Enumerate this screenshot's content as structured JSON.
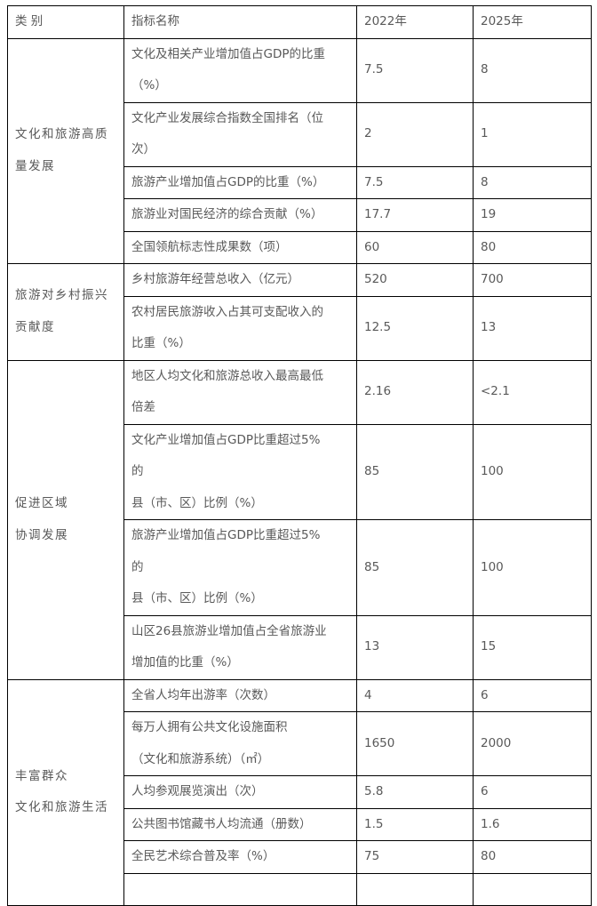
{
  "header": {
    "category": "类 别",
    "indicator": "指标名称",
    "y2022": "2022年",
    "y2025": "2025年"
  },
  "groups": [
    {
      "category": "文化和旅游高质\n量发展",
      "rows": [
        {
          "name": "文化及相关产业增加值占GDP的比重\n（%）",
          "v2022": "7.5",
          "v2025": "8"
        },
        {
          "name": "文化产业发展综合指数全国排名（位\n次）",
          "v2022": "2",
          "v2025": "1"
        },
        {
          "name": "旅游产业增加值占GDP的比重（%）",
          "v2022": "7.5",
          "v2025": "8"
        },
        {
          "name": "旅游业对国民经济的综合贡献（%）",
          "v2022": "17.7",
          "v2025": "19"
        },
        {
          "name": "全国领航标志性成果数（项）",
          "v2022": "60",
          "v2025": "80"
        }
      ]
    },
    {
      "category": "旅游对乡村振兴\n贡献度",
      "rows": [
        {
          "name": "乡村旅游年经营总收入（亿元）",
          "v2022": "520",
          "v2025": "700"
        },
        {
          "name": "农村居民旅游收入占其可支配收入的\n比重（%）",
          "v2022": "12.5",
          "v2025": "13"
        }
      ]
    },
    {
      "category": "促进区域\n协调发展",
      "rows": [
        {
          "name": "地区人均文化和旅游总收入最高最低\n倍差",
          "v2022": "2.16",
          "v2025": "<2.1"
        },
        {
          "name": "文化产业增加值占GDP比重超过5%\n的\n县（市、区）比例（%）",
          "v2022": "85",
          "v2025": "100"
        },
        {
          "name": "旅游产业增加值占GDP比重超过5%\n的\n县（市、区）比例（%）",
          "v2022": "85",
          "v2025": "100"
        },
        {
          "name": "山区26县旅游业增加值占全省旅游业\n增加值的比重（%）",
          "v2022": "13",
          "v2025": "15"
        }
      ]
    },
    {
      "category": "丰富群众\n文化和旅游生活",
      "rows": [
        {
          "name": "全省人均年出游率（次数）",
          "v2022": "4",
          "v2025": "6"
        },
        {
          "name": "每万人拥有公共文化设施面积\n（文化和旅游系统）（㎡）",
          "v2022": "1650",
          "v2025": "2000"
        },
        {
          "name": "人均参观展览演出（次）",
          "v2022": "5.8",
          "v2025": "6"
        },
        {
          "name": "公共图书馆藏书人均流通（册数）",
          "v2022": "1.5",
          "v2025": "1.6"
        },
        {
          "name": "全民艺术综合普及率（%）",
          "v2022": "75",
          "v2025": "80"
        }
      ]
    }
  ]
}
